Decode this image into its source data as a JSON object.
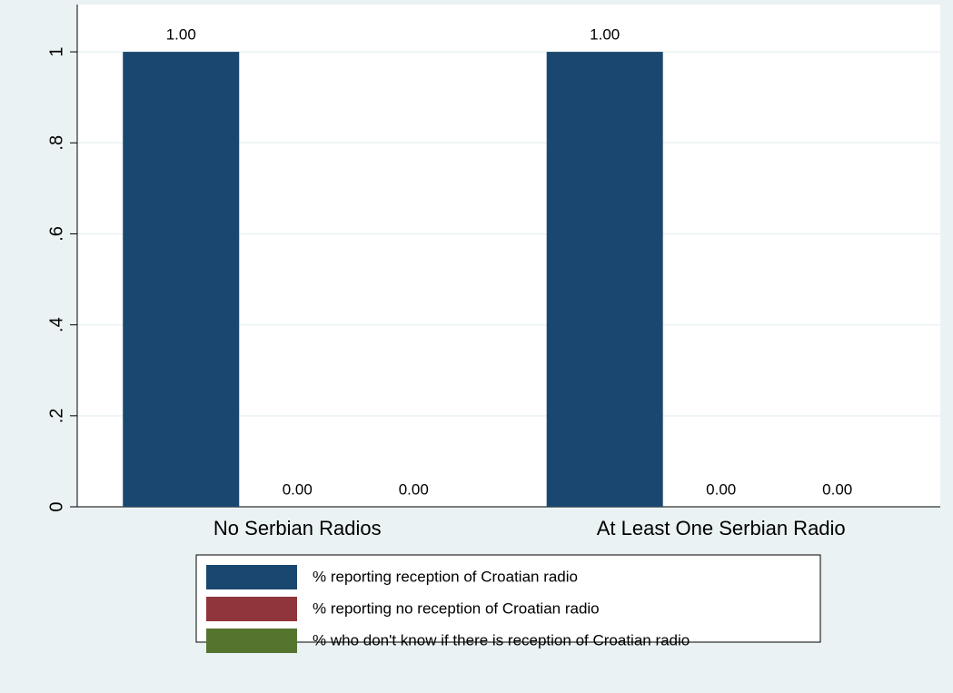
{
  "chart_data": {
    "type": "bar",
    "categories": [
      "No Serbian Radios",
      "At Least One Serbian Radio"
    ],
    "series": [
      {
        "name": "% reporting reception of Croatian radio",
        "color": "#1a476f",
        "values": [
          1,
          1
        ],
        "value_labels": [
          "1.00",
          "1.00"
        ]
      },
      {
        "name": "% reporting no reception of Croatian radio",
        "color": "#90353b",
        "values": [
          0,
          0
        ],
        "value_labels": [
          "0.00",
          "0.00"
        ]
      },
      {
        "name": "% who don't know if there is reception of Croatian radio",
        "color": "#55752f",
        "values": [
          0,
          0
        ],
        "value_labels": [
          "0.00",
          "0.00"
        ]
      }
    ],
    "ylim": [
      0,
      1.1
    ],
    "yticks": [
      0,
      {
        "value": 0.2,
        "label": ".2"
      },
      {
        "value": 0.4,
        "label": ".4"
      },
      {
        "value": 0.6,
        "label": ".6"
      },
      {
        "value": 0.8,
        "label": ".8"
      },
      1
    ],
    "grid": true
  }
}
